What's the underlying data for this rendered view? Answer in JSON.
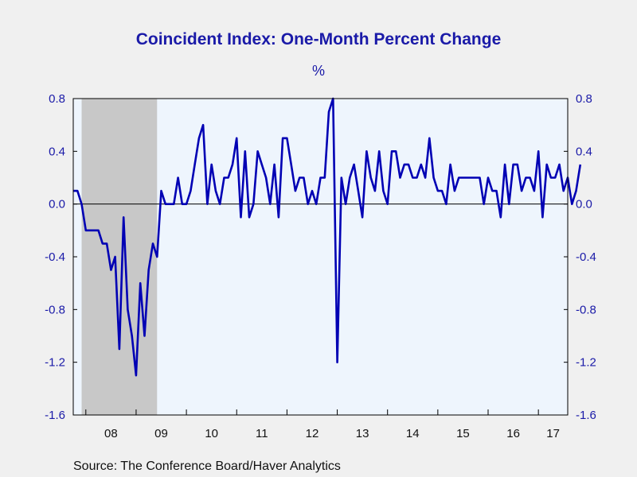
{
  "chart_data": {
    "type": "line",
    "title": "Coincident Index: One-Month Percent Change",
    "unit_label": "%",
    "source": "Source:  The Conference Board/Haver Analytics",
    "xlabel": "",
    "ylabel": "",
    "ylim": [
      -1.6,
      0.8
    ],
    "yticks": [
      "0.8",
      "0.4",
      "0.0",
      "-0.4",
      "-0.8",
      "-1.2",
      "-1.6"
    ],
    "ytick_values": [
      0.8,
      0.4,
      0.0,
      -0.4,
      -0.8,
      -1.2,
      -1.6
    ],
    "x_start": "2007-10",
    "x_end": "2017-08",
    "x_category_labels": [
      "08",
      "09",
      "10",
      "11",
      "12",
      "13",
      "14",
      "15",
      "16",
      "17"
    ],
    "recession": {
      "start": "2007-12",
      "end": "2009-06"
    },
    "zero_line": true,
    "right_axis": true,
    "colors": {
      "line": "#0000b4",
      "title": "#1a1aa8",
      "plot_bg": "#eef5fd",
      "recession": "#c8c8c8",
      "page_bg": "#f0f0f0"
    },
    "series": [
      {
        "values": [
          0.1,
          0.1,
          0.0,
          -0.2,
          -0.2,
          -0.2,
          -0.2,
          -0.3,
          -0.3,
          -0.5,
          -0.4,
          -1.1,
          -0.1,
          -0.8,
          -1.0,
          -1.3,
          -0.6,
          -1.0,
          -0.5,
          -0.3,
          -0.4,
          0.1,
          0.0,
          0.0,
          0.0,
          0.2,
          0.0,
          0.0,
          0.1,
          0.3,
          0.5,
          0.6,
          0.0,
          0.3,
          0.1,
          0.0,
          0.2,
          0.2,
          0.3,
          0.5,
          -0.1,
          0.4,
          -0.1,
          0.0,
          0.4,
          0.3,
          0.2,
          0.0,
          0.3,
          -0.1,
          0.5,
          0.5,
          0.3,
          0.1,
          0.2,
          0.2,
          0.0,
          0.1,
          0.0,
          0.2,
          0.2,
          0.7,
          0.8,
          -1.2,
          0.2,
          0.0,
          0.2,
          0.3,
          0.1,
          -0.1,
          0.4,
          0.2,
          0.1,
          0.4,
          0.1,
          0.0,
          0.4,
          0.4,
          0.2,
          0.3,
          0.3,
          0.2,
          0.2,
          0.3,
          0.2,
          0.5,
          0.2,
          0.1,
          0.1,
          0.0,
          0.3,
          0.1,
          0.2,
          0.2,
          0.2,
          0.2,
          0.2,
          0.2,
          0.0,
          0.2,
          0.1,
          0.1,
          -0.1,
          0.3,
          0.0,
          0.3,
          0.3,
          0.1,
          0.2,
          0.2,
          0.1,
          0.4,
          -0.1,
          0.3,
          0.2,
          0.2,
          0.3,
          0.1,
          0.2,
          0.0,
          0.1,
          0.3
        ]
      }
    ]
  }
}
